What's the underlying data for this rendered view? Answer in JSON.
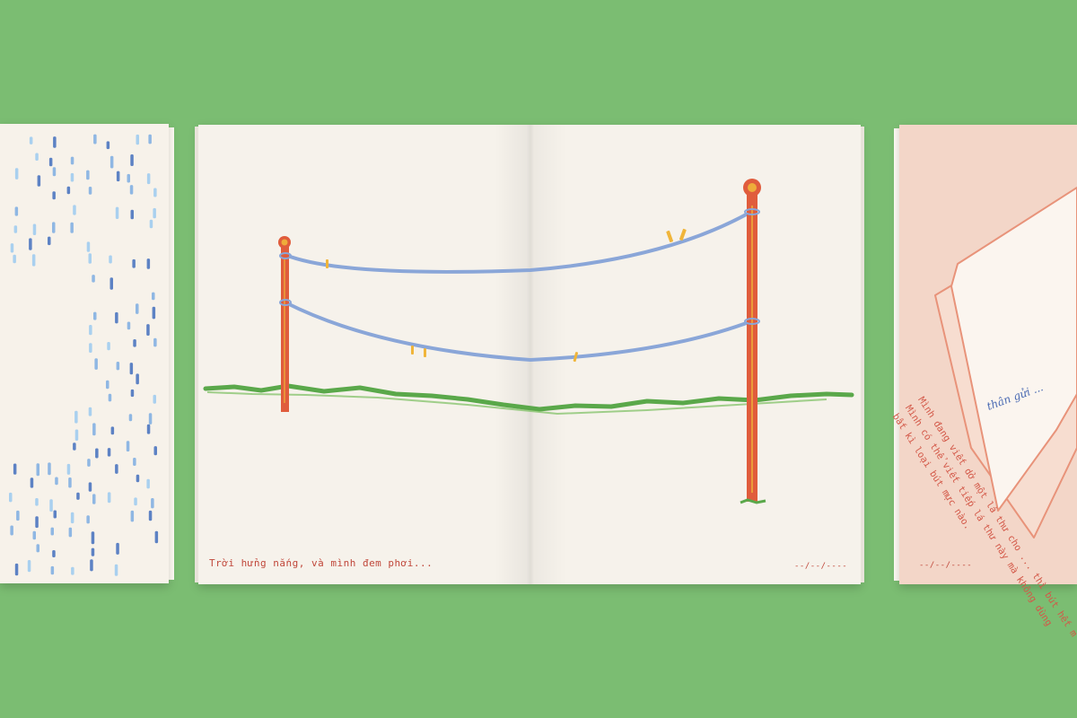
{
  "background_color": "#7bbd72",
  "left_book": {
    "pattern": "rain-dashes",
    "colors": [
      "#8fb7e3",
      "#5d82c4",
      "#a9d0ef"
    ]
  },
  "spread": {
    "caption": "Trời hửng nắng, và mình đem phơi...",
    "date_placeholder": "--/--/----",
    "illustration": "clothesline-with-two-poles-and-clothespins",
    "colors": {
      "pole": "#e05c3c",
      "rope": "#8aa6d8",
      "grass": "#5aa84a",
      "clip": "#f0b53a"
    }
  },
  "right_book": {
    "greeting": "thân gửi ...",
    "letter_lines": [
      "Mình đang viết dở một lá thư cho ... thì bút hết m",
      "Mình có thể viết tiếp lá thư này mà không dùng",
      "bất kì loại bút mực nào."
    ],
    "date_placeholder": "--/--/----",
    "colors": {
      "paper": "#f3d6c8",
      "text": "#d35848",
      "greeting": "#4a6ab3"
    }
  }
}
